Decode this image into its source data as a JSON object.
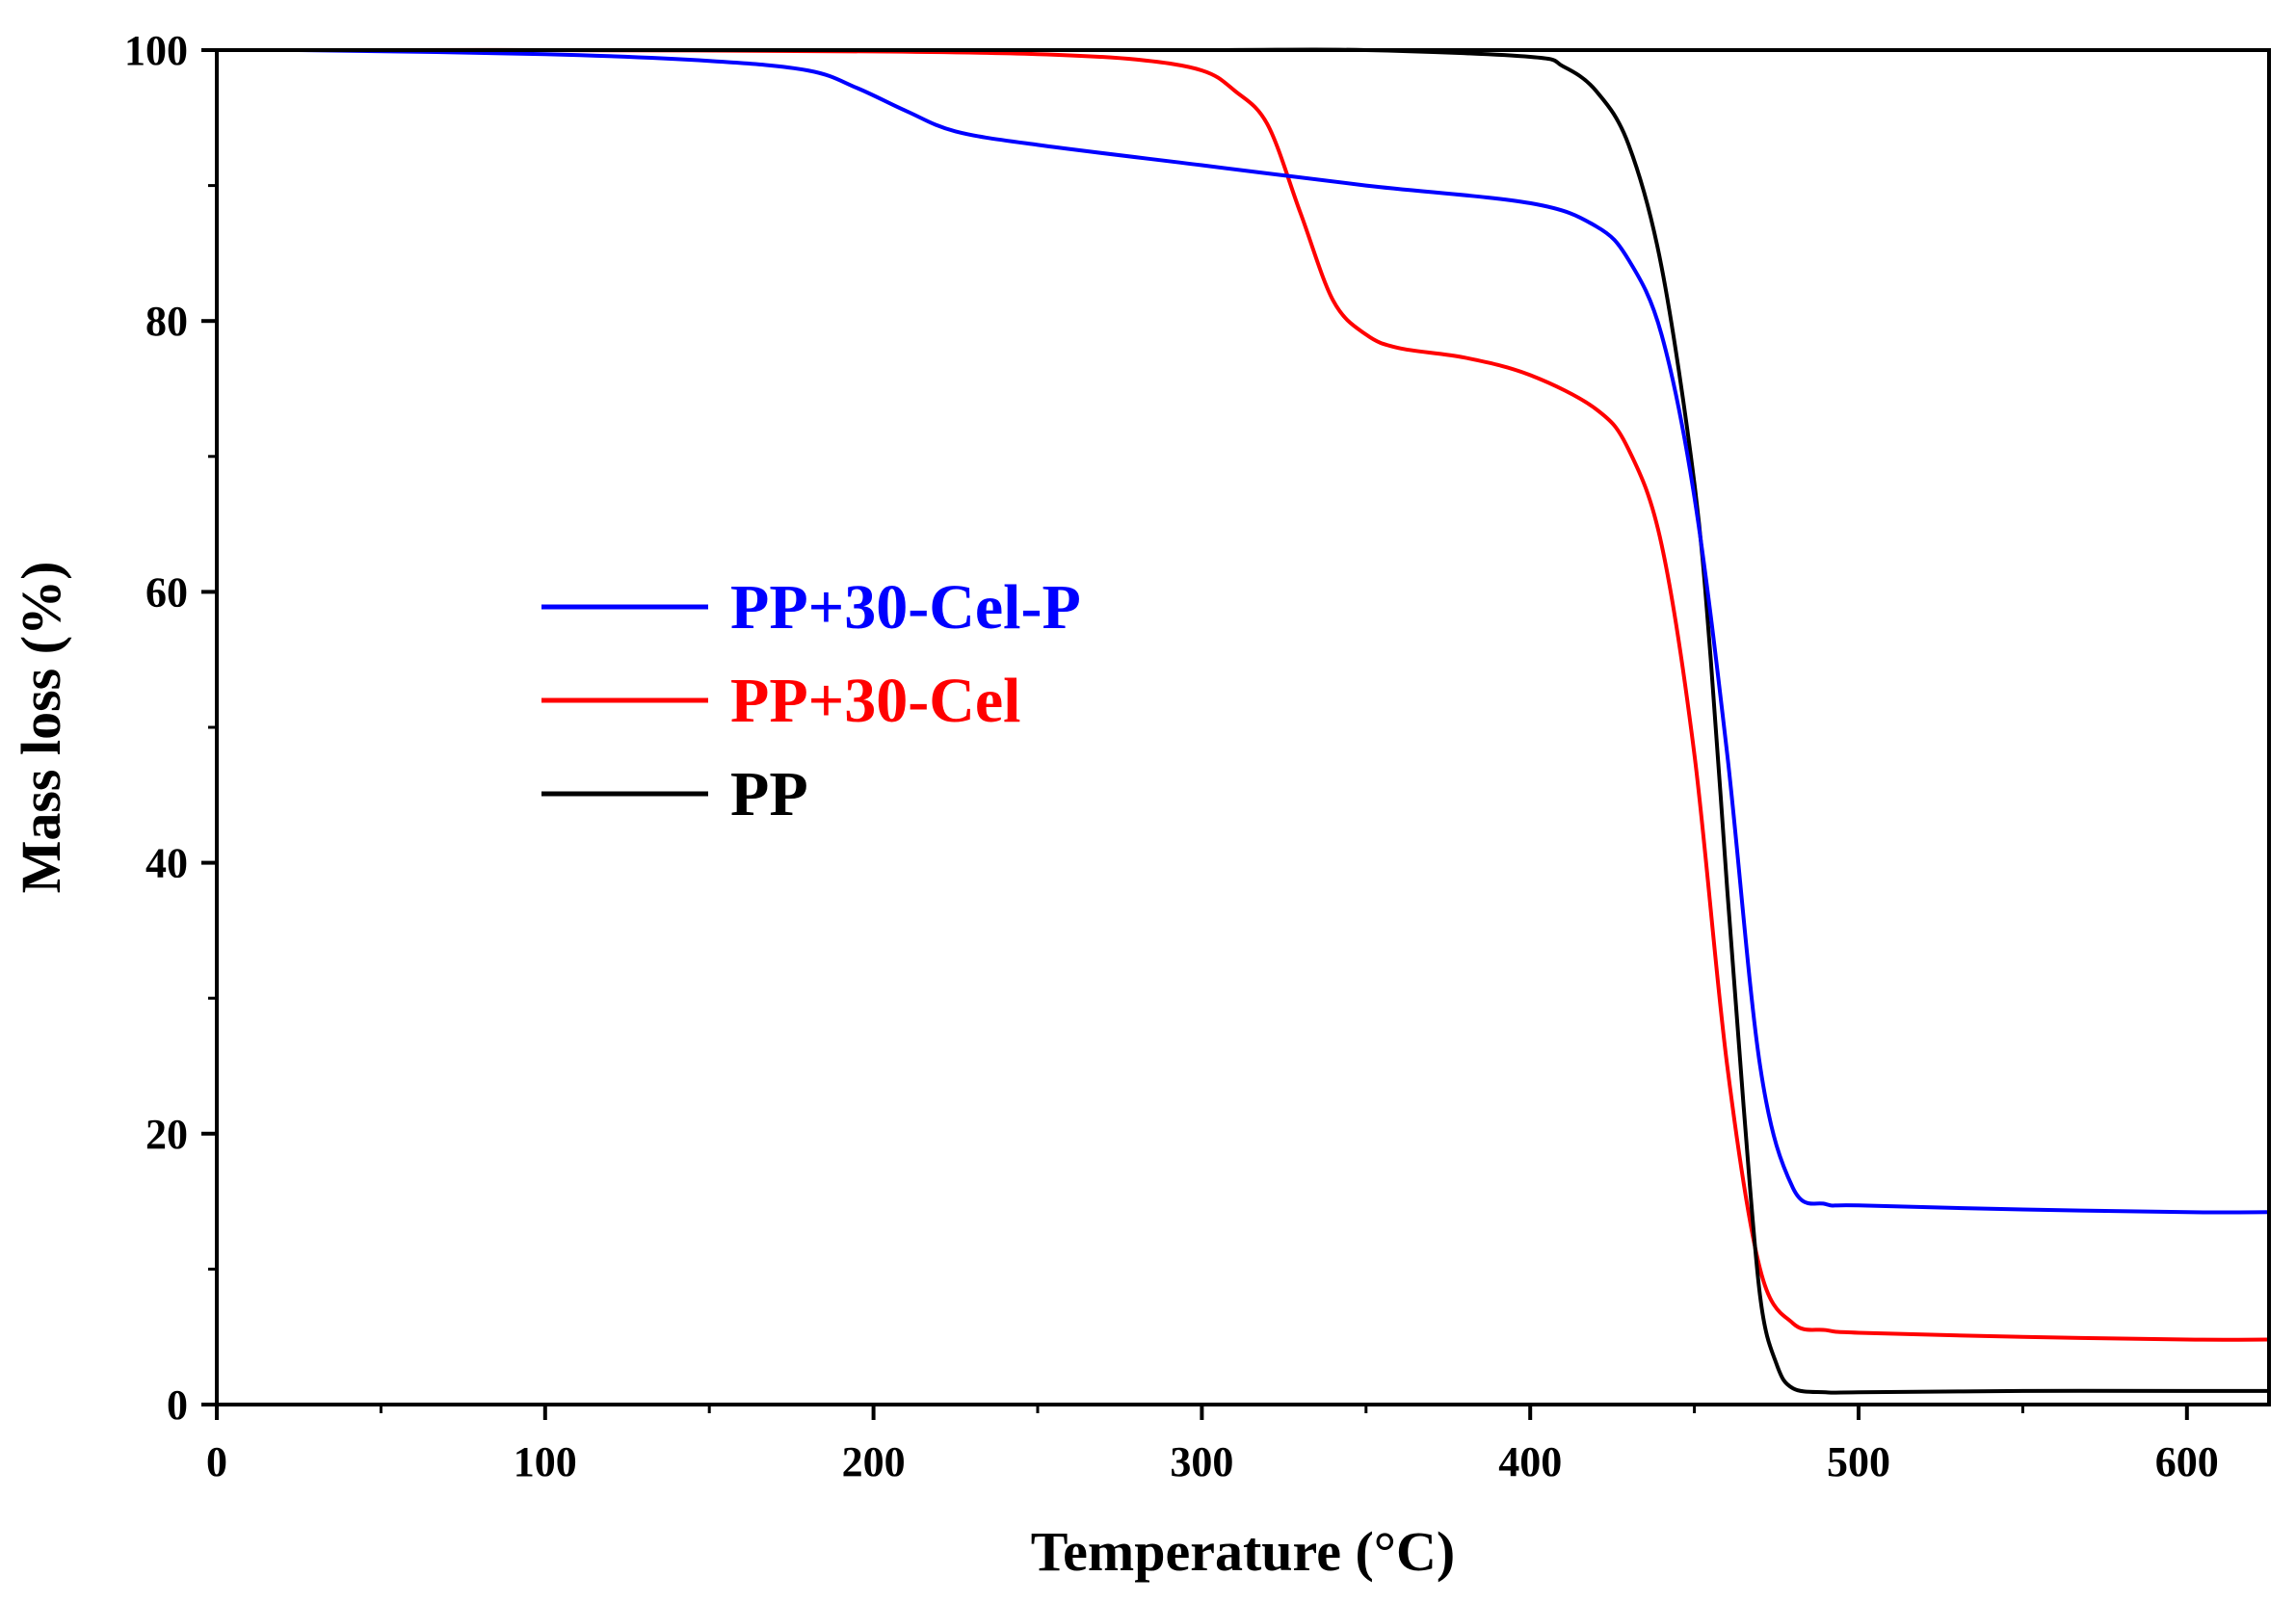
{
  "chart_data": {
    "type": "line",
    "title": "",
    "xlabel": "Temperature (°C)",
    "ylabel": "Mass loss (%)",
    "xlim": [
      0,
      625
    ],
    "ylim": [
      0,
      100
    ],
    "xticks": [
      0,
      100,
      200,
      300,
      400,
      500,
      600
    ],
    "xtick_labels": [
      "0",
      "100",
      "200",
      "300",
      "400",
      "500",
      "600"
    ],
    "yticks": [
      0,
      20,
      40,
      60,
      80,
      100
    ],
    "ytick_labels": [
      "0",
      "20",
      "40",
      "60",
      "80",
      "100"
    ],
    "grid": false,
    "legend_position": "center-left",
    "series": [
      {
        "name": "PP+30-Cel-P",
        "color": "#0000ff",
        "x": [
          25,
          100,
          150,
          180,
          195,
          210,
          225,
          250,
          300,
          350,
          400,
          420,
          430,
          440,
          450,
          460,
          470,
          480,
          490,
          500,
          550,
          600,
          625
        ],
        "y": [
          100,
          99.7,
          99.2,
          98.5,
          97.2,
          95.5,
          94.0,
          93.0,
          91.5,
          90.0,
          88.7,
          87.0,
          84.5,
          79.0,
          67.0,
          48.0,
          25.0,
          16.0,
          14.8,
          14.7,
          14.4,
          14.2,
          14.2
        ]
      },
      {
        "name": "PP+30-Cel",
        "color": "#ff0000",
        "x": [
          25,
          100,
          200,
          250,
          280,
          300,
          310,
          320,
          330,
          340,
          350,
          360,
          380,
          400,
          420,
          430,
          440,
          450,
          460,
          470,
          480,
          490,
          500,
          550,
          600,
          625
        ],
        "y": [
          100,
          100,
          99.9,
          99.7,
          99.3,
          98.5,
          97.0,
          94.5,
          88.0,
          81.5,
          79.0,
          78.0,
          77.3,
          76.0,
          73.5,
          70.5,
          63.5,
          48.0,
          25.0,
          10.0,
          6.0,
          5.5,
          5.3,
          5.0,
          4.8,
          4.8
        ]
      },
      {
        "name": "PP",
        "color": "#000000",
        "x": [
          25,
          100,
          200,
          300,
          350,
          400,
          410,
          420,
          430,
          440,
          450,
          455,
          460,
          465,
          470,
          475,
          480,
          490,
          500,
          550,
          600,
          625
        ],
        "y": [
          100,
          100,
          100,
          100,
          100,
          99.5,
          98.8,
          97.0,
          93.0,
          84.0,
          68.0,
          55.0,
          38.0,
          22.0,
          8.0,
          3.0,
          1.2,
          0.9,
          0.9,
          1.0,
          1.0,
          1.0
        ]
      }
    ]
  }
}
